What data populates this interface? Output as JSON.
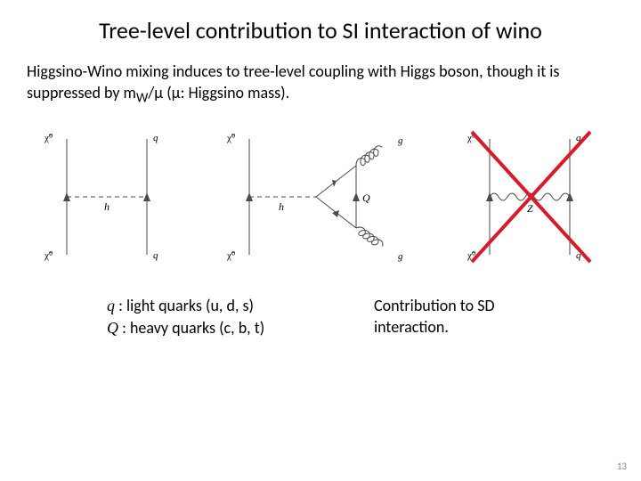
{
  "title": "Tree-level contribution to SI interaction of wino",
  "subtitle_html": "Higgsino-Wino mixing induces to tree-level coupling with Higgs boson, though it is suppressed by m<sub>W</sub>/μ (μ: Higgsino mass).",
  "diagrams": {
    "d1": {
      "type": "feynman",
      "left_top": "χ̃⁰",
      "left_bottom": "χ̃⁰",
      "right_top": "q",
      "right_bottom": "q",
      "mediator": "h",
      "mediator_style": "higgs",
      "crossed": false
    },
    "d2": {
      "type": "feynman",
      "left_top": "χ̃⁰",
      "left_bottom": "χ̃⁰",
      "right_top": "g",
      "right_bottom": "g",
      "triangle_label": "Q",
      "mediator": "h",
      "mediator_style": "higgs",
      "gluon_loops": true,
      "crossed": false
    },
    "d3": {
      "type": "feynman",
      "left_top": "χ̃⁰",
      "left_bottom": "χ̃⁰",
      "right_top": "q",
      "right_bottom": "q",
      "mediator": "Z",
      "mediator_style": "wavy",
      "crossed": true,
      "cross_color": "#d81b2a",
      "cross_width": 4
    }
  },
  "legend": {
    "q_symbol": "q",
    "q_text": " : light quarks (u, d, s)",
    "Q_symbol": "Q",
    "Q_text": " : heavy quarks  (c, b, t)"
  },
  "right_caption": "Contribution to SD interaction.",
  "page_number": "13",
  "style": {
    "line_color": "#4a4a4a",
    "line_width": 1,
    "label_fontsize": 11,
    "mediator_fontsize": 12,
    "arrow_size": 5
  }
}
